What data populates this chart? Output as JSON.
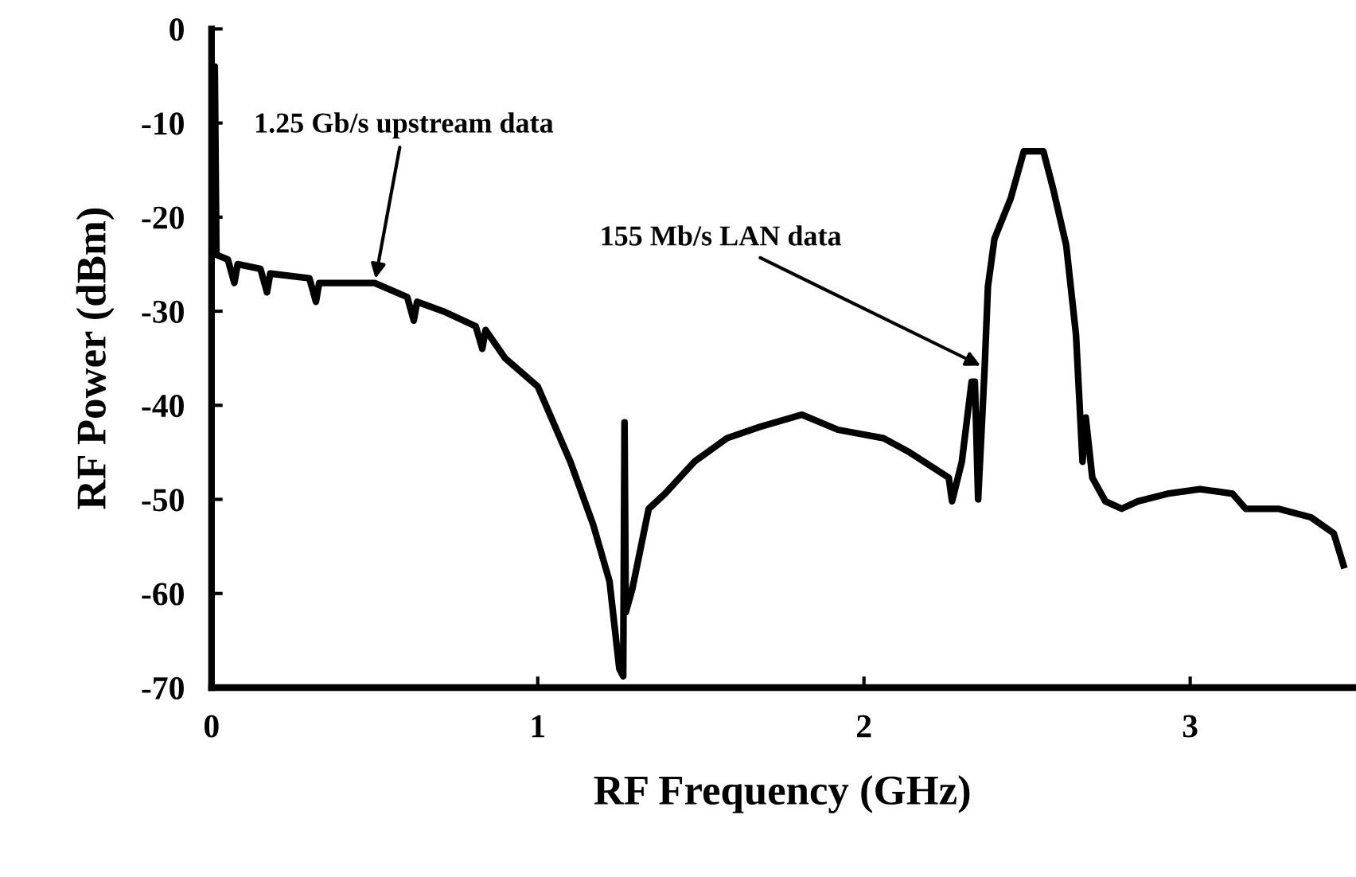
{
  "chart_data": {
    "type": "line",
    "xlabel": "RF Frequency (GHz)",
    "ylabel": "RF Power (dBm)",
    "x": [
      0,
      0.005,
      0.01,
      0.015,
      0.05,
      0.07,
      0.08,
      0.15,
      0.17,
      0.18,
      0.3,
      0.32,
      0.33,
      0.45,
      0.5,
      0.6,
      0.62,
      0.63,
      0.71,
      0.81,
      0.83,
      0.84,
      0.9,
      1.0,
      1.1,
      1.17,
      1.22,
      1.25,
      1.262,
      1.266,
      1.27,
      1.29,
      1.34,
      1.39,
      1.48,
      1.58,
      1.68,
      1.81,
      1.92,
      2.06,
      2.14,
      2.26,
      2.27,
      2.3,
      2.33,
      2.34,
      2.35,
      2.37,
      2.38,
      2.4,
      2.45,
      2.49,
      2.55,
      2.58,
      2.62,
      2.65,
      2.67,
      2.68,
      2.7,
      2.74,
      2.79,
      2.84,
      2.93,
      3.03,
      3.13,
      3.17,
      3.27,
      3.37,
      3.44,
      3.47
    ],
    "values": [
      -24,
      -4,
      -4,
      -24,
      -24.5,
      -27,
      -25,
      -25.5,
      -28,
      -26,
      -26.5,
      -29,
      -27,
      -27,
      -27,
      -28.5,
      -31,
      -29,
      -30,
      -31.6,
      -34,
      -32,
      -35,
      -38,
      -46,
      -52.7,
      -58.7,
      -68,
      -68.8,
      -41.8,
      -62,
      -59.5,
      -51,
      -49.4,
      -46,
      -43.5,
      -42.3,
      -41,
      -42.6,
      -43.5,
      -45,
      -47.7,
      -50.2,
      -46,
      -37.5,
      -37.5,
      -50,
      -36,
      -27.4,
      -22.3,
      -18,
      -13,
      -13,
      -17,
      -23,
      -32.5,
      -46,
      -41.3,
      -47.7,
      -50.2,
      -51,
      -50.2,
      -49.4,
      -48.9,
      -49.4,
      -51,
      -51,
      -51.9,
      -53.6,
      -57
    ],
    "color": "#000000",
    "marker": "none",
    "line_style": "solid",
    "xlim": [
      0,
      3.5
    ],
    "ylim": [
      -70,
      0
    ],
    "xticks": [
      0,
      1,
      2,
      3
    ],
    "yticks": [
      -70,
      -60,
      -50,
      -40,
      -30,
      -20,
      -10,
      0
    ],
    "grid": false,
    "legend": false,
    "annotations": [
      {
        "text": "1.25 Gb/s upstream data",
        "x": 0.5,
        "y": -27
      },
      {
        "text": "155 Mb/s LAN data",
        "x": 2.37,
        "y": -36
      }
    ]
  }
}
